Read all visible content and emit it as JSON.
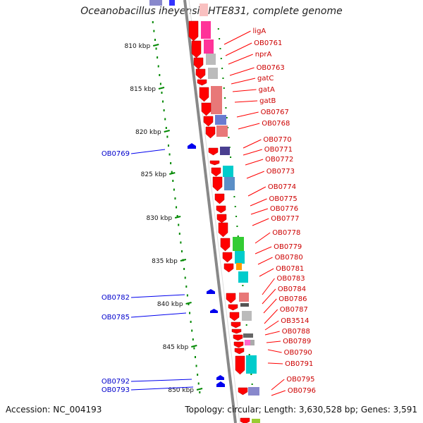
{
  "title": "Oceanobacillus iheyensis HTE831, complete genome",
  "accession_text": "Accession: NC_004193",
  "summary_text": "Topology: circular; Length: 3,630,528 bp; Genes: 3,591",
  "scale_labels": [
    "810 kbp",
    "815 kbp",
    "820 kbp",
    "825 kbp",
    "830 kbp",
    "835 kbp",
    "840 kbp",
    "845 kbp",
    "850 kbp"
  ],
  "forward_gene_labels": [
    "ligA",
    "OB0761",
    "nprA",
    "OB0763",
    "gatC",
    "gatA",
    "gatB",
    "OB0767",
    "OB0768",
    "OB0770",
    "OB0771",
    "OB0772",
    "OB0773",
    "OB0774",
    "OB0775",
    "OB0776",
    "OB0777",
    "OB0778",
    "OB0779",
    "OB0780",
    "OB0781",
    "OB0783",
    "OB0784",
    "OB0786",
    "OB0787",
    "OB3514",
    "OB0788",
    "OB0789",
    "OB0790",
    "OB0791",
    "OB0795",
    "OB0796"
  ],
  "reverse_gene_labels": [
    "OB0769",
    "OB0782",
    "OB0785",
    "OB0792",
    "OB0793"
  ],
  "colors": {
    "forward_gene": "#ff0000",
    "reverse_gene": "#0000ee",
    "forward_label": "#cc0000",
    "reverse_label": "#0000cc",
    "gc_ticks": "#008800",
    "backbone": "#888888"
  },
  "cog_colors": [
    "#ff3399",
    "#bbbbbb",
    "#e87878",
    "#6a7bd0",
    "#4a3f90",
    "#00cccc",
    "#5b8fc7",
    "#33cc33",
    "#ff9900",
    "#ff66cc",
    "#b0b0b0",
    "#f4a0a0"
  ]
}
